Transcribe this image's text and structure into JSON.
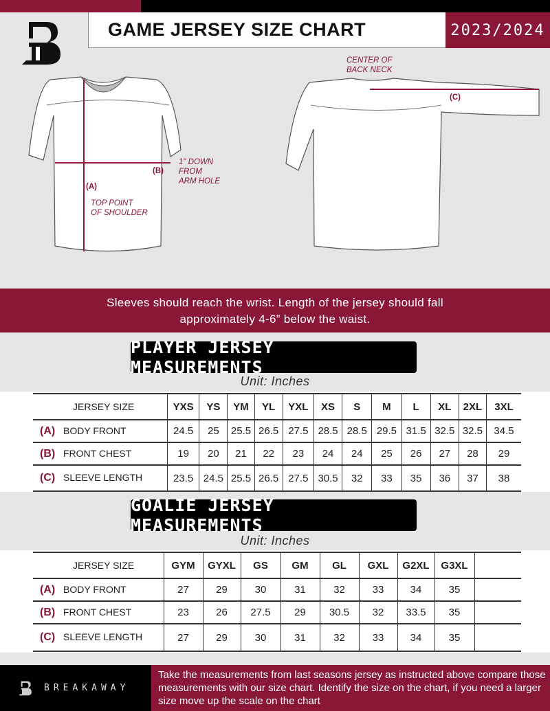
{
  "header": {
    "title": "GAME JERSEY SIZE CHART",
    "season": "2023/2024"
  },
  "diagram": {
    "front": {
      "label_a": "(A)",
      "label_a_desc": "TOP POINT\nOF SHOULDER",
      "label_b": "(B)",
      "label_b_desc": "1\" DOWN\nFROM\nARM HOLE"
    },
    "back": {
      "center_label": "CENTER OF\nBACK NECK",
      "label_c": "(C)"
    }
  },
  "banner": {
    "line1": "Sleeves should reach the wrist. Length of the jersey should fall",
    "line2": "approximately 4-6” below the waist."
  },
  "player": {
    "title": "PLAYER JERSEY MEASUREMENTS",
    "unit": "Unit: Inches",
    "header_label": "JERSEY SIZE",
    "sizes": [
      "YXS",
      "YS",
      "YM",
      "YL",
      "YXL",
      "XS",
      "S",
      "M",
      "L",
      "XL",
      "2XL",
      "3XL"
    ],
    "rows": [
      {
        "letter": "(A)",
        "label": "BODY FRONT",
        "values": [
          "24.5",
          "25",
          "25.5",
          "26.5",
          "27.5",
          "28.5",
          "28.5",
          "29.5",
          "31.5",
          "32.5",
          "32.5",
          "34.5"
        ]
      },
      {
        "letter": "(B)",
        "label": "FRONT CHEST",
        "values": [
          "19",
          "20",
          "21",
          "22",
          "23",
          "24",
          "24",
          "25",
          "26",
          "27",
          "28",
          "29"
        ]
      },
      {
        "letter": "(C)",
        "label": "SLEEVE LENGTH",
        "values": [
          "23.5",
          "24.5",
          "25.5",
          "26.5",
          "27.5",
          "30.5",
          "32",
          "33",
          "35",
          "36",
          "37",
          "38"
        ]
      }
    ]
  },
  "goalie": {
    "title": "GOALIE JERSEY MEASUREMENTS",
    "unit": "Unit: Inches",
    "header_label": "JERSEY SIZE",
    "sizes": [
      "GYM",
      "GYXL",
      "GS",
      "GM",
      "GL",
      "GXL",
      "G2XL",
      "G3XL",
      ""
    ],
    "rows": [
      {
        "letter": "(A)",
        "label": "BODY FRONT",
        "values": [
          "27",
          "29",
          "30",
          "31",
          "32",
          "33",
          "34",
          "35",
          ""
        ]
      },
      {
        "letter": "(B)",
        "label": "FRONT CHEST",
        "values": [
          "23",
          "26",
          "27.5",
          "29",
          "30.5",
          "32",
          "33.5",
          "35",
          ""
        ]
      },
      {
        "letter": "(C)",
        "label": "SLEEVE LENGTH",
        "values": [
          "27",
          "29",
          "30",
          "31",
          "32",
          "33",
          "34",
          "35",
          ""
        ]
      }
    ]
  },
  "footer": {
    "brand": "BREAKAWAY",
    "note": "Take the measurements from last seasons jersey as instructed above compare those measurements  with our size chart. Identify the size on the chart, if you need a larger size move up the scale on the chart"
  },
  "colors": {
    "accent": "#8a1735",
    "dark": "#000000",
    "background": "#e5e5e7"
  }
}
